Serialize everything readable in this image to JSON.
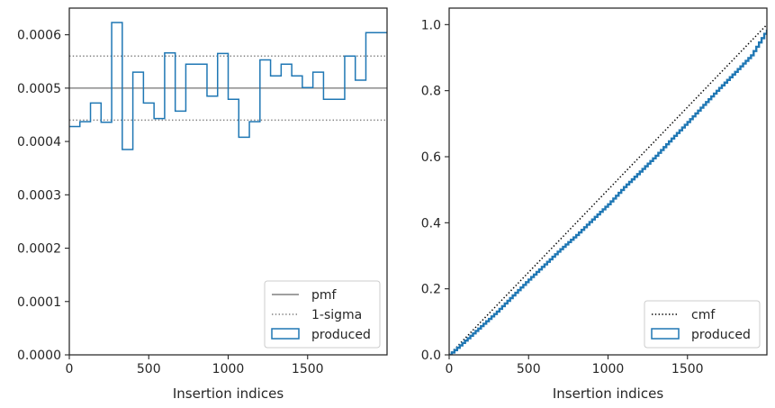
{
  "chart_data": [
    {
      "type": "step",
      "xlabel": "Insertion indices",
      "ylabel": "",
      "xlim": [
        0,
        2000
      ],
      "ylim": [
        0,
        0.00065
      ],
      "xticks": [
        0,
        500,
        1000,
        1500
      ],
      "xtick_labels": [
        "0",
        "500",
        "1000",
        "1500"
      ],
      "yticks": [
        0,
        0.0001,
        0.0002,
        0.0003,
        0.0004,
        0.0005,
        0.0006
      ],
      "ytick_labels": [
        "0.0000",
        "0.0001",
        "0.0002",
        "0.0003",
        "0.0004",
        "0.0005",
        "0.0006"
      ],
      "grid": false,
      "legend_position": "lower-right",
      "reference_lines": [
        {
          "name": "pmf",
          "y": 0.0005,
          "style": "solid",
          "color": "#808080"
        },
        {
          "name": "1-sigma",
          "y": 0.00056,
          "style": "dotted",
          "color": "#808080"
        },
        {
          "name": "1-sigma",
          "y": 0.00044,
          "style": "dotted",
          "color": "#808080"
        }
      ],
      "series": [
        {
          "name": "produced",
          "color": "#1f77b4",
          "bin_width": 66.67,
          "values": [
            0.000428,
            0.000437,
            0.000472,
            0.000436,
            0.000623,
            0.000385,
            0.00053,
            0.000472,
            0.000443,
            0.000566,
            0.000457,
            0.000545,
            0.000545,
            0.000485,
            0.000565,
            0.000479,
            0.000408,
            0.000437,
            0.000553,
            0.000523,
            0.000545,
            0.000523,
            0.000501,
            0.00053,
            0.000479,
            0.000479,
            0.00056,
            0.000515,
            0.000604,
            0.000604
          ]
        }
      ],
      "legend": [
        {
          "label": "pmf",
          "kind": "line-solid"
        },
        {
          "label": "1-sigma",
          "kind": "line-dotted"
        },
        {
          "label": "produced",
          "kind": "patch"
        }
      ]
    },
    {
      "type": "step",
      "xlabel": "Insertion indices",
      "ylabel": "",
      "xlim": [
        0,
        2000
      ],
      "ylim": [
        0,
        1.05
      ],
      "xticks": [
        0,
        500,
        1000,
        1500
      ],
      "xtick_labels": [
        "0",
        "500",
        "1000",
        "1500"
      ],
      "yticks": [
        0,
        0.2,
        0.4,
        0.6,
        0.8,
        1.0
      ],
      "ytick_labels": [
        "0.0",
        "0.2",
        "0.4",
        "0.6",
        "0.8",
        "1.0"
      ],
      "grid": false,
      "legend_position": "lower-right",
      "reference_lines": [
        {
          "name": "cmf",
          "from": [
            0,
            0
          ],
          "to": [
            2000,
            1.0
          ],
          "style": "dotted",
          "color": "#000000"
        }
      ],
      "series": [
        {
          "name": "produced",
          "color": "#1f77b4",
          "x": [
            0,
            100,
            200,
            300,
            400,
            500,
            600,
            700,
            800,
            900,
            1000,
            1100,
            1200,
            1300,
            1400,
            1500,
            1600,
            1700,
            1800,
            1900,
            2000
          ],
          "y": [
            0,
            0.043,
            0.087,
            0.131,
            0.18,
            0.228,
            0.274,
            0.32,
            0.363,
            0.41,
            0.456,
            0.508,
            0.555,
            0.603,
            0.655,
            0.705,
            0.757,
            0.808,
            0.857,
            0.907,
            0.985
          ]
        }
      ],
      "legend": [
        {
          "label": "cmf",
          "kind": "line-dotted-black"
        },
        {
          "label": "produced",
          "kind": "patch"
        }
      ]
    }
  ]
}
